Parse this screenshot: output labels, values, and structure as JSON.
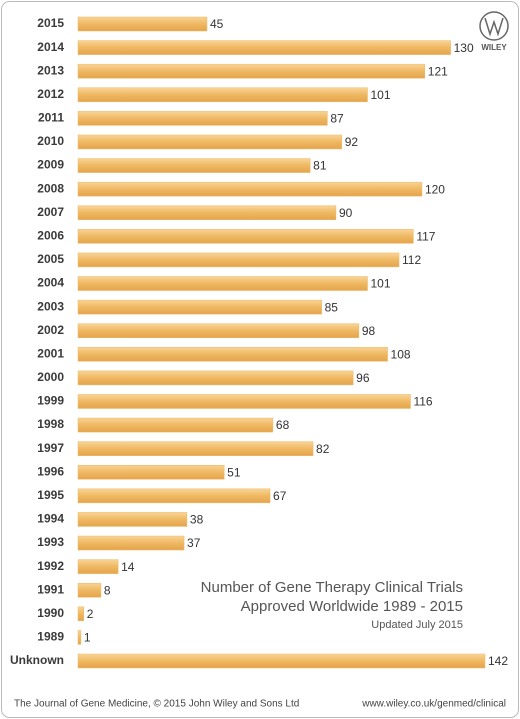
{
  "chart_data": {
    "type": "bar",
    "orientation": "horizontal",
    "title": [
      "Number of Gene Therapy Clinical Trials",
      "Approved Worldwide 1989 - 2015"
    ],
    "subtitle": "Updated July 2015",
    "source": "The Journal of Gene Medicine, © 2015 John Wiley and Sons Ltd",
    "url": "www.wiley.co.uk/genmed/clinical",
    "logo": "WILEY",
    "color": "#efb862",
    "categories": [
      "2015",
      "2014",
      "2013",
      "2012",
      "2011",
      "2010",
      "2009",
      "2008",
      "2007",
      "2006",
      "2005",
      "2004",
      "2003",
      "2002",
      "2001",
      "2000",
      "1999",
      "1998",
      "1997",
      "1996",
      "1995",
      "1994",
      "1993",
      "1992",
      "1991",
      "1990",
      "1989",
      "Unknown"
    ],
    "values": [
      45,
      130,
      121,
      101,
      87,
      92,
      81,
      120,
      90,
      117,
      112,
      101,
      85,
      98,
      108,
      96,
      116,
      68,
      82,
      51,
      67,
      38,
      37,
      14,
      8,
      2,
      1,
      142
    ]
  }
}
